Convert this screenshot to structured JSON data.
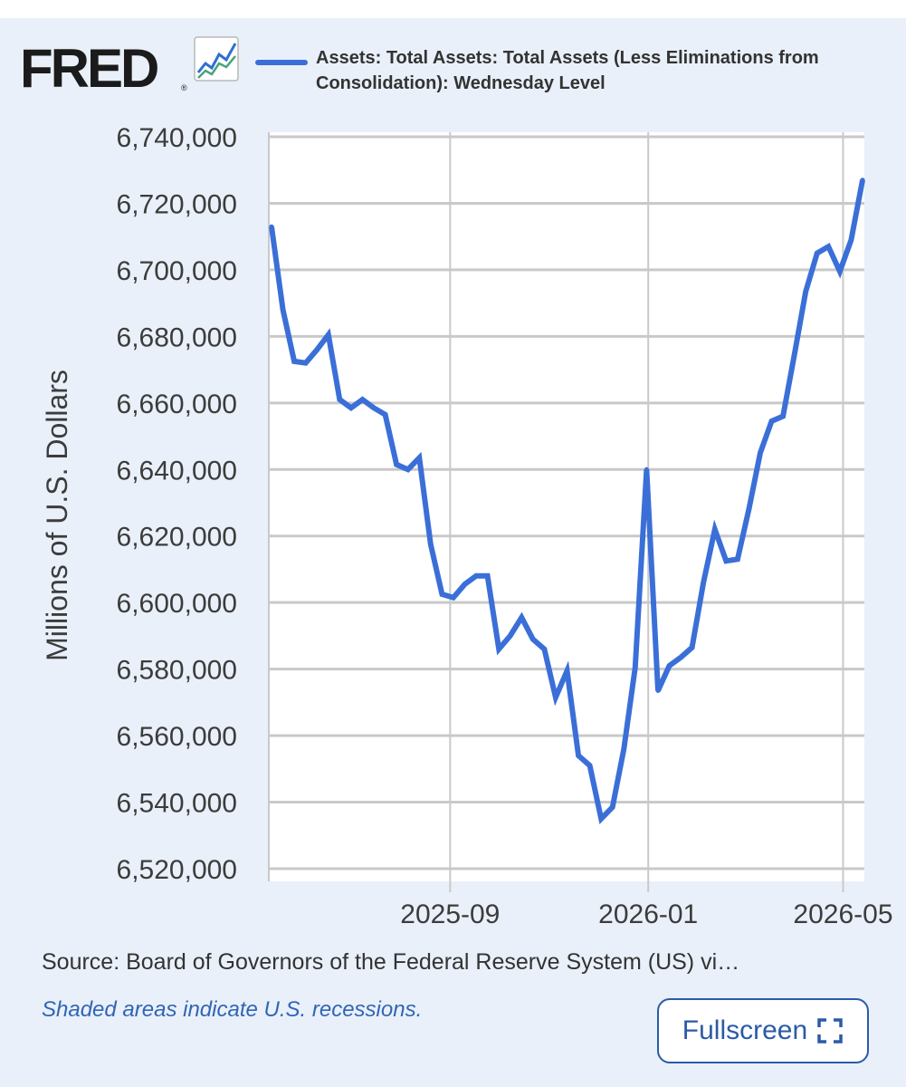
{
  "branding": {
    "logo_text": "FRED",
    "logo_reg": "®",
    "logo_icon": "chart-line-icon"
  },
  "chart_data": {
    "type": "line",
    "title": "",
    "legend": [
      "Assets: Total Assets: Total Assets (Less Eliminations from Consolidation): Wednesday Level"
    ],
    "legend_placement": "top",
    "ylabel": "Millions of U.S. Dollars",
    "xlabel": "",
    "ylim": [
      6520000,
      6740000
    ],
    "y_ticks": [
      "6,520,000",
      "6,540,000",
      "6,560,000",
      "6,580,000",
      "6,600,000",
      "6,620,000",
      "6,640,000",
      "6,660,000",
      "6,680,000",
      "6,700,000",
      "6,720,000",
      "6,740,000"
    ],
    "x_ticks": [
      "2025-09",
      "2026-01",
      "2026-05"
    ],
    "grid": true,
    "colors": {
      "series": "#3b6fd8",
      "grid": "#c9c9c9",
      "plot_bg": "#ffffff",
      "panel_bg": "#e9f0f9"
    },
    "series": [
      {
        "name": "Assets: Total Assets: Total Assets (Less Eliminations from Consolidation): Wednesday Level",
        "x": [
          "2025-05-14",
          "2025-05-21",
          "2025-05-28",
          "2025-06-04",
          "2025-06-11",
          "2025-06-18",
          "2025-06-25",
          "2025-07-02",
          "2025-07-09",
          "2025-07-16",
          "2025-07-23",
          "2025-07-30",
          "2025-08-06",
          "2025-08-13",
          "2025-08-20",
          "2025-08-27",
          "2025-09-03",
          "2025-09-10",
          "2025-09-17",
          "2025-09-24",
          "2025-10-01",
          "2025-10-08",
          "2025-10-15",
          "2025-10-22",
          "2025-10-29",
          "2025-11-05",
          "2025-11-12",
          "2025-11-19",
          "2025-11-26",
          "2025-12-03",
          "2025-12-10",
          "2025-12-17",
          "2025-12-24",
          "2025-12-31",
          "2026-01-07",
          "2026-01-14",
          "2026-01-21",
          "2026-01-28",
          "2026-02-04",
          "2026-02-11",
          "2026-02-18",
          "2026-02-25",
          "2026-03-04",
          "2026-03-11",
          "2026-03-18",
          "2026-03-25",
          "2026-04-01",
          "2026-04-08",
          "2026-04-15",
          "2026-04-22",
          "2026-04-29",
          "2026-05-06",
          "2026-05-13"
        ],
        "values": [
          6713000,
          6688000,
          6672500,
          6672000,
          6676000,
          6680500,
          6661000,
          6658500,
          6661000,
          6658500,
          6656500,
          6641500,
          6640000,
          6643500,
          6617500,
          6602500,
          6601500,
          6605500,
          6608000,
          6608000,
          6586000,
          6590000,
          6595500,
          6589000,
          6586000,
          6571500,
          6579500,
          6554000,
          6551000,
          6535000,
          6538500,
          6556000,
          6580500,
          6640000,
          6573500,
          6581000,
          6583500,
          6586500,
          6606000,
          6622000,
          6612500,
          6613000,
          6628000,
          6645000,
          6654500,
          6656000,
          6674500,
          6693500,
          6705000,
          6707000,
          6699500,
          6709000,
          6727000
        ]
      }
    ]
  },
  "footer": {
    "source": "Source: Board of Governors of the Federal Reserve System (US) vi…",
    "recession_note": "Shaded areas indicate U.S. recessions.",
    "fullscreen_label": "Fullscreen",
    "fullscreen_icon": "expand-icon"
  }
}
